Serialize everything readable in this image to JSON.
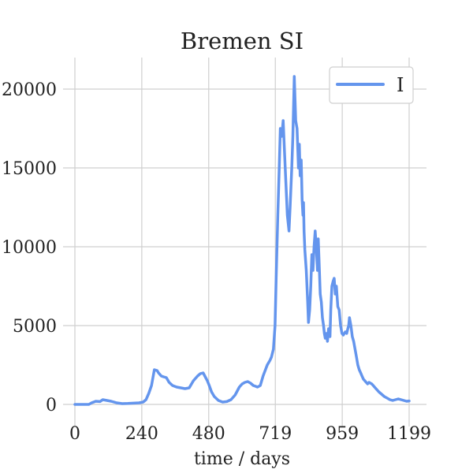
{
  "chart_data": {
    "type": "line",
    "title": "Bremen SI",
    "xlabel": "time / days",
    "ylabel": "",
    "xlim": [
      0,
      1199
    ],
    "ylim": [
      0,
      21000
    ],
    "xticks": [
      0,
      240,
      480,
      719,
      959,
      1199
    ],
    "xtick_labels": [
      "0",
      "240",
      "480",
      "719",
      "959",
      "1199"
    ],
    "yticks": [
      0,
      5000,
      10000,
      15000,
      20000
    ],
    "ytick_labels": [
      "0",
      "5000",
      "10000",
      "15000",
      "20000"
    ],
    "grid": true,
    "legend_position": "top-right",
    "series": [
      {
        "name": "I",
        "color": "#6495ED",
        "x": [
          0,
          50,
          60,
          75,
          90,
          100,
          115,
          130,
          150,
          170,
          190,
          210,
          230,
          245,
          255,
          265,
          275,
          285,
          295,
          300,
          310,
          318,
          328,
          338,
          350,
          365,
          380,
          395,
          410,
          425,
          440,
          450,
          460,
          475,
          482,
          490,
          500,
          515,
          530,
          545,
          560,
          575,
          590,
          600,
          610,
          620,
          630,
          640,
          648,
          655,
          665,
          675,
          690,
          700,
          705,
          712,
          718,
          722,
          728,
          733,
          737,
          742,
          747,
          752,
          757,
          762,
          768,
          772,
          778,
          782,
          787,
          792,
          797,
          802,
          805,
          808,
          812,
          815,
          818,
          820,
          822,
          825,
          830,
          835,
          838,
          842,
          846,
          850,
          854,
          858,
          862,
          866,
          870,
          873,
          876,
          880,
          884,
          888,
          892,
          895,
          898,
          902,
          906,
          910,
          915,
          918,
          922,
          926,
          930,
          934,
          938,
          943,
          948,
          953,
          958,
          963,
          970,
          975,
          979,
          982,
          985,
          990,
          995,
          1000,
          1005,
          1010,
          1015,
          1020,
          1025,
          1030,
          1035,
          1040,
          1045,
          1050,
          1055,
          1060,
          1065,
          1070,
          1080,
          1090,
          1100,
          1110,
          1120,
          1130,
          1140,
          1150,
          1160,
          1170,
          1180,
          1190,
          1199
        ],
        "y": [
          0,
          0,
          100,
          200,
          180,
          300,
          250,
          200,
          100,
          50,
          60,
          80,
          100,
          150,
          300,
          700,
          1200,
          2200,
          2150,
          2000,
          1800,
          1750,
          1700,
          1400,
          1200,
          1100,
          1050,
          1000,
          1050,
          1500,
          1800,
          1950,
          2000,
          1500,
          1200,
          800,
          500,
          250,
          150,
          180,
          300,
          600,
          1100,
          1300,
          1400,
          1450,
          1350,
          1200,
          1150,
          1100,
          1200,
          1800,
          2500,
          2800,
          3000,
          3500,
          5000,
          8000,
          12000,
          15000,
          17500,
          17000,
          18000,
          16000,
          14000,
          12000,
          11000,
          12500,
          15000,
          17000,
          20800,
          18000,
          17500,
          15000,
          16500,
          14500,
          15500,
          13000,
          12000,
          12800,
          11000,
          9800,
          8500,
          6500,
          5200,
          6000,
          7500,
          9500,
          8500,
          10000,
          11000,
          10000,
          8500,
          10500,
          9000,
          7000,
          6500,
          5500,
          5000,
          4500,
          4200,
          4500,
          4000,
          4800,
          4300,
          6000,
          7500,
          7800,
          8000,
          7000,
          7500,
          6200,
          6000,
          5000,
          4500,
          4400,
          4600,
          4500,
          4800,
          5000,
          5500,
          5000,
          4300,
          4000,
          3500,
          3000,
          2500,
          2200,
          2000,
          1800,
          1600,
          1500,
          1400,
          1300,
          1400,
          1350,
          1300,
          1200,
          1000,
          800,
          650,
          500,
          400,
          300,
          250,
          300,
          350,
          300,
          250,
          200,
          220
        ]
      }
    ]
  }
}
